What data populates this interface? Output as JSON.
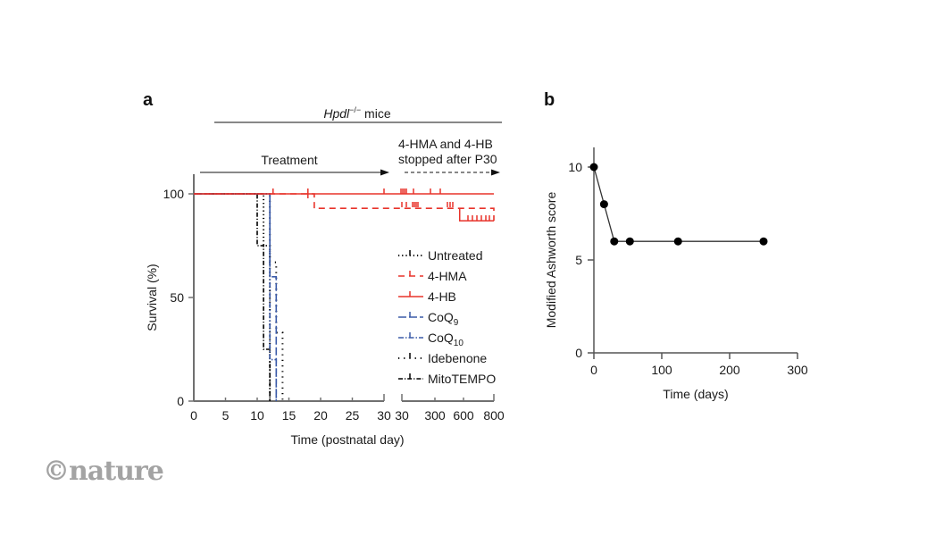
{
  "chart_data": [
    {
      "panel": "a",
      "type": "line",
      "subtype": "kaplan-meier survival",
      "title": "Hpdl−/− mice",
      "title_italic": "Hpdl",
      "title_sup": "−/−",
      "title_rest": " mice",
      "annotation_treatment": "Treatment",
      "annotation_stopped_line1": "4-HMA and 4-HB",
      "annotation_stopped_line2": "stopped after P30",
      "xlabel": "Time (postnatal day)",
      "ylabel": "Survival (%)",
      "x_segment1": {
        "range": [
          0,
          30
        ],
        "ticks": [
          "0",
          "5",
          "10",
          "15",
          "20",
          "25",
          "30"
        ]
      },
      "x_segment2": {
        "range": [
          30,
          800
        ],
        "ticks": [
          "30",
          "300",
          "600",
          "800"
        ]
      },
      "ylim": [
        0,
        100
      ],
      "yticks": [
        "0",
        "50",
        "100"
      ],
      "series": [
        {
          "name": "Untreated",
          "color": "#000000",
          "dash": "dot",
          "steps": [
            [
              0,
              100
            ],
            [
              11,
              100
            ],
            [
              11,
              75
            ],
            [
              12,
              75
            ],
            [
              12,
              0
            ]
          ]
        },
        {
          "name": "4-HMA",
          "color": "#e8332a",
          "dash": "dash",
          "steps": [
            [
              0,
              100
            ],
            [
              19,
              100
            ],
            [
              19,
              93
            ],
            [
              800,
              93
            ],
            [
              800,
              87
            ]
          ],
          "late_drop": 87
        },
        {
          "name": "4-HB",
          "color": "#e8332a",
          "dash": "solid",
          "steps": [
            [
              0,
              100
            ],
            [
              800,
              100
            ]
          ]
        },
        {
          "name": "CoQ9",
          "label_base": "CoQ",
          "label_sub": "9",
          "color": "#3b5ba9",
          "dash": "dashlong",
          "steps": [
            [
              0,
              100
            ],
            [
              12,
              100
            ],
            [
              12,
              60
            ],
            [
              13,
              60
            ],
            [
              13,
              0
            ]
          ]
        },
        {
          "name": "CoQ10",
          "label_base": "CoQ",
          "label_sub": "10",
          "color": "#3b5ba9",
          "dash": "dashdot",
          "steps": [
            [
              0,
              100
            ],
            [
              12,
              100
            ],
            [
              12,
              20
            ],
            [
              13,
              20
            ],
            [
              13,
              0
            ]
          ]
        },
        {
          "name": "Idebenone",
          "color": "#000000",
          "dash": "dotsparse",
          "steps": [
            [
              0,
              100
            ],
            [
              12,
              100
            ],
            [
              12,
              67
            ],
            [
              13,
              67
            ],
            [
              13,
              33
            ],
            [
              14,
              33
            ],
            [
              14,
              0
            ]
          ]
        },
        {
          "name": "MitoTEMPO",
          "color": "#000000",
          "dash": "dashdot2",
          "steps": [
            [
              0,
              100
            ],
            [
              10,
              100
            ],
            [
              10,
              75
            ],
            [
              11,
              75
            ],
            [
              11,
              25
            ],
            [
              12,
              25
            ],
            [
              12,
              0
            ]
          ]
        }
      ],
      "legend_position": "right"
    },
    {
      "panel": "b",
      "type": "line",
      "xlabel": "Time (days)",
      "ylabel": "Modified Ashworth score",
      "xlim": [
        0,
        300
      ],
      "ylim": [
        0,
        10
      ],
      "xticks": [
        "0",
        "100",
        "200",
        "300"
      ],
      "yticks": [
        "0",
        "5",
        "10"
      ],
      "x": [
        0,
        15,
        30,
        53,
        124,
        250
      ],
      "y": [
        10,
        8,
        6,
        6,
        6,
        6
      ]
    }
  ],
  "branding": {
    "logo_text": "©nature"
  }
}
